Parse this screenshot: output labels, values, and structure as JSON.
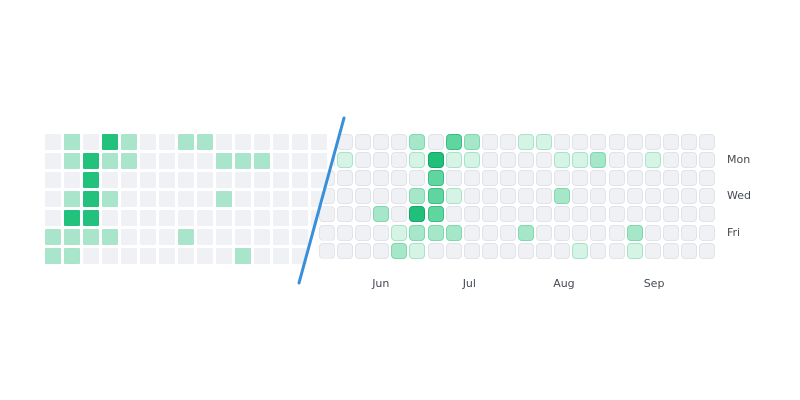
{
  "calendar": {
    "weekday_labels": [
      {
        "row": 1,
        "text": "Mon"
      },
      {
        "row": 3,
        "text": "Wed"
      },
      {
        "row": 5,
        "text": "Fri"
      }
    ],
    "month_labels": [
      {
        "col": 2,
        "text": "Jun"
      },
      {
        "col": 7,
        "text": "Jul"
      },
      {
        "col": 12,
        "text": "Aug"
      },
      {
        "col": 17,
        "text": "Sep"
      }
    ],
    "old_style_levels": [
      [
        0,
        1,
        0,
        3,
        1,
        0,
        0,
        1,
        1,
        0,
        0,
        0,
        0,
        0,
        0
      ],
      [
        0,
        1,
        3,
        1,
        1,
        0,
        0,
        0,
        0,
        1,
        1,
        1,
        0,
        0,
        0
      ],
      [
        0,
        0,
        3,
        0,
        0,
        0,
        0,
        0,
        0,
        0,
        0,
        0,
        0,
        0,
        0
      ],
      [
        0,
        1,
        3,
        1,
        0,
        0,
        0,
        0,
        0,
        1,
        0,
        0,
        0,
        0,
        0
      ],
      [
        0,
        3,
        3,
        0,
        0,
        0,
        0,
        0,
        0,
        0,
        0,
        0,
        0,
        0,
        0
      ],
      [
        1,
        1,
        1,
        1,
        0,
        0,
        0,
        1,
        0,
        0,
        0,
        0,
        0,
        0,
        0
      ],
      [
        1,
        1,
        0,
        0,
        0,
        0,
        0,
        0,
        0,
        0,
        1,
        0,
        0,
        0,
        1
      ]
    ],
    "new_style_levels": [
      [
        0,
        0,
        0,
        0,
        2,
        0,
        3,
        2,
        0,
        0,
        1,
        1,
        0,
        0,
        0,
        0,
        0,
        0,
        0,
        0,
        0
      ],
      [
        1,
        0,
        0,
        0,
        1,
        4,
        1,
        1,
        0,
        0,
        0,
        0,
        1,
        1,
        2,
        0,
        0,
        1,
        0,
        0,
        0
      ],
      [
        0,
        0,
        0,
        0,
        0,
        3,
        0,
        0,
        0,
        0,
        0,
        0,
        0,
        0,
        0,
        0,
        0,
        0,
        0,
        0,
        0
      ],
      [
        0,
        0,
        0,
        0,
        2,
        3,
        1,
        0,
        0,
        0,
        0,
        0,
        2,
        0,
        0,
        0,
        0,
        0,
        0,
        0,
        0
      ],
      [
        0,
        0,
        2,
        0,
        4,
        3,
        0,
        0,
        0,
        0,
        0,
        0,
        0,
        0,
        0,
        0,
        0,
        0,
        0,
        0,
        0
      ],
      [
        0,
        0,
        0,
        1,
        2,
        2,
        2,
        0,
        0,
        0,
        2,
        0,
        0,
        0,
        0,
        0,
        2,
        0,
        0,
        0,
        0
      ],
      [
        0,
        0,
        0,
        2,
        1,
        0,
        0,
        0,
        0,
        0,
        0,
        0,
        0,
        1,
        0,
        0,
        1,
        0,
        0,
        0,
        0
      ]
    ]
  },
  "colors": {
    "old_levels": [
      "#f0f1f4",
      "#a9e5cb",
      "#6fd3a6",
      "#22c17c"
    ],
    "new_fill": [
      "#f0f1f4",
      "#d6f4e6",
      "#a6e7c9",
      "#5fd59f",
      "#21c07a"
    ],
    "new_border": [
      "#e0e3e8",
      "#a8e3c8",
      "#7fd8ae",
      "#3bbd85",
      "#16a566"
    ],
    "divider": "#3a8fd9"
  }
}
